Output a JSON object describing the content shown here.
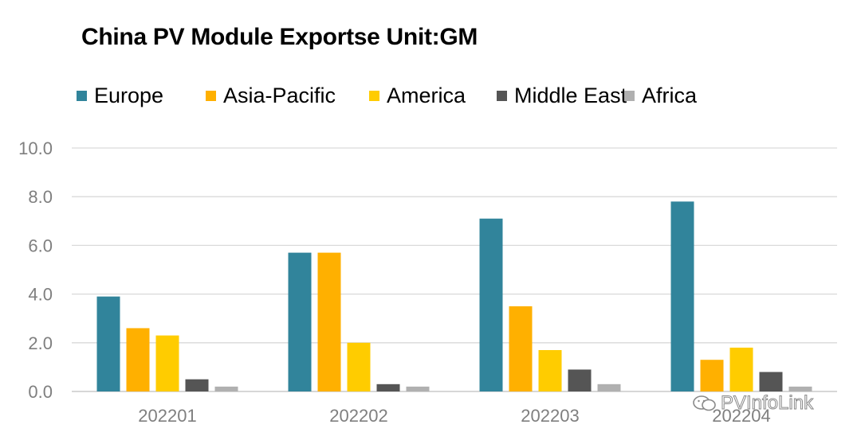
{
  "chart_data": {
    "type": "bar",
    "title": "China PV Module Exportse Unit:GM",
    "categories": [
      "202201",
      "202202",
      "202203",
      "202204"
    ],
    "series": [
      {
        "name": "Europe",
        "color": "#31849b",
        "values": [
          3.9,
          5.7,
          7.1,
          7.8
        ]
      },
      {
        "name": "Asia-Pacific",
        "color": "#ffb000",
        "values": [
          2.6,
          5.7,
          3.5,
          1.3
        ]
      },
      {
        "name": "America",
        "color": "#ffcc00",
        "values": [
          2.3,
          2.0,
          1.7,
          1.8
        ]
      },
      {
        "name": "Middle East",
        "color": "#555555",
        "values": [
          0.5,
          0.3,
          0.9,
          0.8
        ]
      },
      {
        "name": "Africa",
        "color": "#b0b0b0",
        "values": [
          0.2,
          0.2,
          0.3,
          0.2
        ]
      }
    ],
    "yticks": [
      "0.0",
      "2.0",
      "4.0",
      "6.0",
      "8.0",
      "10.0"
    ],
    "ylim": [
      0,
      10
    ],
    "grid": true,
    "legend_position": "top-left"
  },
  "watermark": {
    "text": "PVInfoLink",
    "icon": "wechat-icon"
  }
}
